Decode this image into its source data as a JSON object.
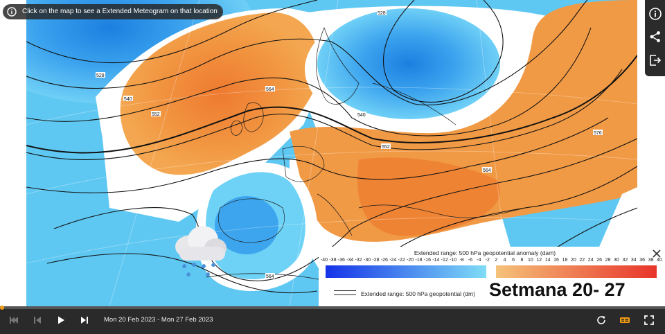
{
  "tooltip": {
    "text": "Click on the map to see a Extended Meteogram on that location"
  },
  "map": {
    "contour_labels": [
      "528",
      "540",
      "552",
      "552",
      "564",
      "564",
      "564",
      "576",
      "540",
      "528"
    ],
    "overlay_icon": "rain-cloud-icon"
  },
  "toolbar_right": {
    "buttons": [
      "info-icon",
      "share-icon",
      "export-icon"
    ]
  },
  "legend": {
    "title": "Extended range: 500 hPa geopotential anomaly (dam)",
    "ticks": [
      "-40",
      "-38",
      "-36",
      "-34",
      "-32",
      "-30",
      "-28",
      "-26",
      "-24",
      "-22",
      "-20",
      "-18",
      "-16",
      "-14",
      "-12",
      "-10",
      "-8",
      "-6",
      "-4",
      "-2",
      "2",
      "4",
      "6",
      "8",
      "10",
      "12",
      "14",
      "16",
      "18",
      "20",
      "22",
      "24",
      "26",
      "28",
      "30",
      "32",
      "34",
      "36",
      "38",
      "40"
    ],
    "colors": {
      "cold_start": "#1533e8",
      "cold_end": "#7fdcf6",
      "warm_start": "#f5c27a",
      "warm_end": "#e8342a"
    },
    "line_label": "Extended range: 500 hPa geopotential (dm)",
    "week_label": "Setmana 20- 27"
  },
  "timeline": {
    "dates": "Mon 20 Feb 2023 - Mon 27 Feb 2023",
    "progress": 0.0
  },
  "colors": {
    "dark_panel": "#2a2a2a",
    "accent": "#f39c12"
  }
}
